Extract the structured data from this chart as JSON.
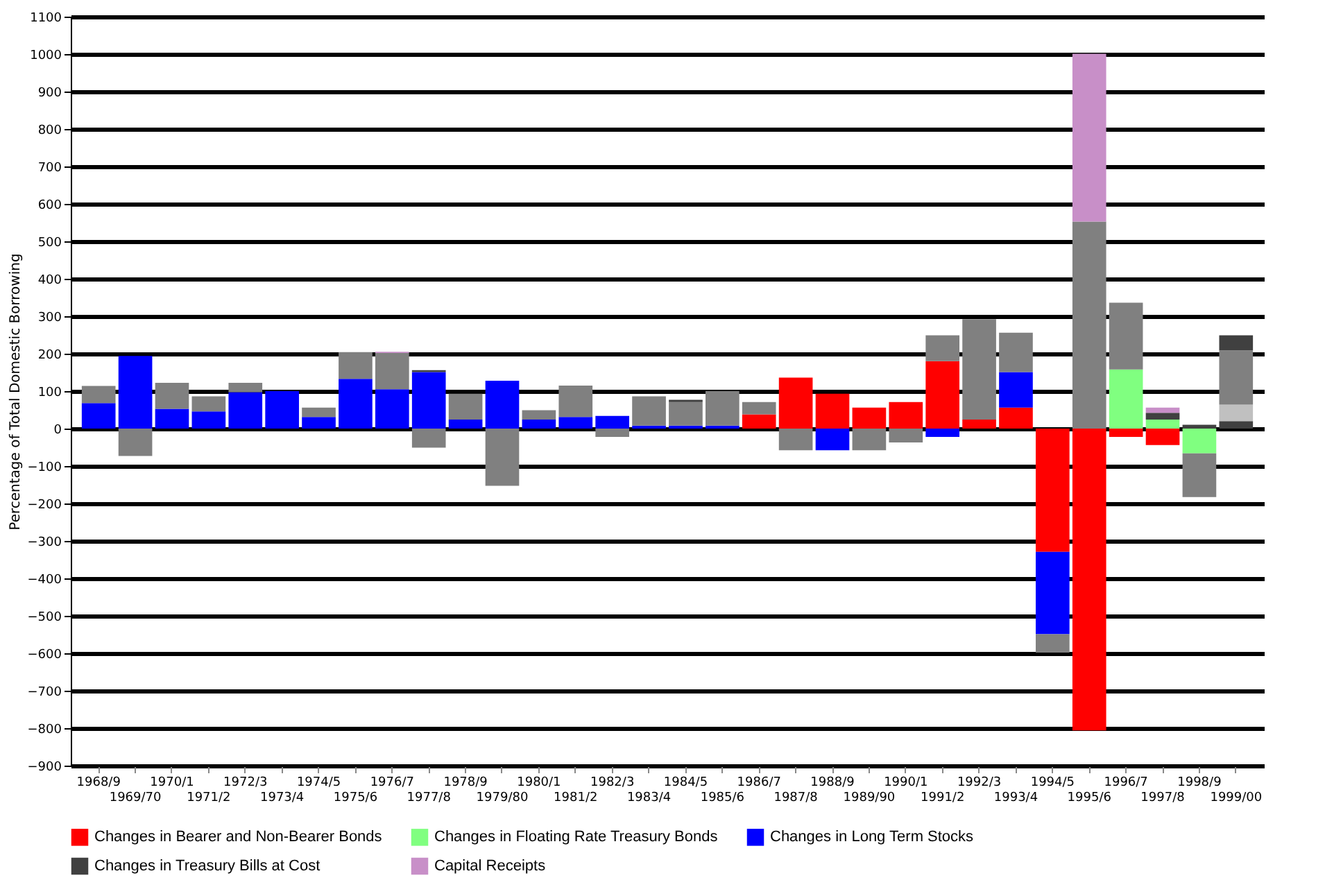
{
  "chart_data": {
    "type": "bar",
    "stacked": true,
    "ylabel": "Percentage of Total Domestic Borrowing",
    "categories": [
      "1968/9",
      "1969/70",
      "1970/1",
      "1971/2",
      "1972/3",
      "1973/4",
      "1974/5",
      "1975/6",
      "1976/7",
      "1977/8",
      "1978/9",
      "1979/80",
      "1980/1",
      "1981/2",
      "1982/3",
      "1983/4",
      "1984/5",
      "1985/6",
      "1986/7",
      "1987/8",
      "1988/9",
      "1989/90",
      "1990/1",
      "1991/2",
      "1992/3",
      "1993/4",
      "1994/5",
      "1995/6",
      "1996/7",
      "1997/8",
      "1998/9",
      "1999/00"
    ],
    "series": [
      {
        "color": "#404040",
        "values": [
          null,
          null,
          null,
          null,
          null,
          null,
          null,
          null,
          null,
          null,
          null,
          null,
          null,
          null,
          null,
          null,
          null,
          null,
          null,
          null,
          null,
          null,
          null,
          null,
          null,
          null,
          null,
          null,
          null,
          null,
          null,
          20
        ]
      },
      {
        "name": "Changes in Bearer and Non-Bearer Bonds",
        "color": "#ff0000",
        "values": [
          null,
          null,
          null,
          null,
          null,
          null,
          null,
          null,
          null,
          null,
          null,
          null,
          null,
          null,
          null,
          null,
          null,
          null,
          38,
          136,
          93,
          56,
          71,
          180,
          24,
          56,
          -329,
          -806,
          -22,
          -44,
          null,
          null
        ]
      },
      {
        "name": "Changes in Floating Rate Treasury Bonds",
        "color": "#80ff80",
        "values": [
          null,
          null,
          null,
          null,
          null,
          null,
          null,
          null,
          null,
          null,
          null,
          null,
          null,
          null,
          null,
          null,
          null,
          null,
          null,
          null,
          null,
          null,
          null,
          null,
          null,
          null,
          null,
          null,
          158,
          24,
          -66,
          null
        ]
      },
      {
        "name": "Changes in Long Term Stocks",
        "color": "#0000ff",
        "values": [
          68,
          194,
          53,
          46,
          97,
          100,
          31,
          133,
          105,
          151,
          24,
          128,
          24,
          31,
          34,
          8,
          8,
          8,
          null,
          null,
          -58,
          null,
          null,
          -22,
          null,
          95,
          -220,
          null,
          null,
          null,
          null,
          null
        ]
      },
      {
        "color": "#c0c0c0",
        "values": [
          null,
          null,
          null,
          null,
          null,
          null,
          null,
          null,
          null,
          null,
          null,
          null,
          null,
          null,
          null,
          null,
          null,
          null,
          null,
          null,
          null,
          null,
          null,
          null,
          null,
          null,
          null,
          null,
          null,
          null,
          null,
          44
        ]
      },
      {
        "color": "#808080",
        "values": [
          46,
          -73,
          69,
          40,
          25,
          null,
          25,
          71,
          97,
          -51,
          69,
          -153,
          25,
          84,
          -22,
          78,
          63,
          92,
          33,
          -58,
          null,
          -58,
          -37,
          69,
          268,
          105,
          -49,
          553,
          178,
          null,
          -117,
          145
        ]
      },
      {
        "name": "Changes in Treasury Bills at Cost",
        "color": "#404040",
        "values": [
          null,
          null,
          null,
          null,
          null,
          null,
          null,
          null,
          null,
          5,
          null,
          null,
          null,
          null,
          null,
          null,
          6,
          null,
          null,
          null,
          null,
          null,
          null,
          null,
          null,
          null,
          null,
          null,
          null,
          18,
          10,
          40
        ]
      },
      {
        "name": "Capital Receipts",
        "color": "#c88fc8",
        "values": [
          null,
          null,
          null,
          null,
          null,
          null,
          null,
          null,
          3,
          null,
          null,
          null,
          null,
          null,
          null,
          null,
          null,
          null,
          null,
          null,
          null,
          null,
          null,
          null,
          null,
          null,
          null,
          448,
          null,
          14,
          null,
          null
        ]
      }
    ],
    "ylim": [
      -900,
      1100
    ],
    "yticks": [
      -900,
      -800,
      -700,
      -600,
      -500,
      -400,
      -300,
      -200,
      -100,
      0,
      100,
      200,
      300,
      400,
      500,
      600,
      700,
      800,
      900,
      1000,
      1100
    ],
    "grid": "y",
    "legend": "bottom"
  }
}
